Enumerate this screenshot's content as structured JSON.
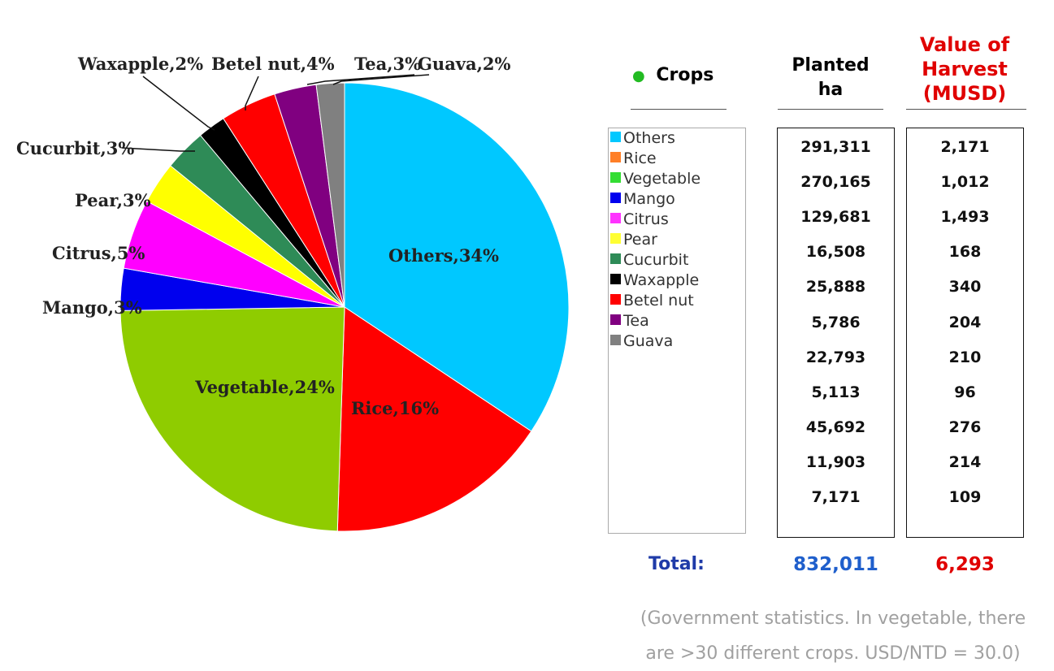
{
  "chart_data": {
    "type": "pie",
    "slices": [
      {
        "name": "Others",
        "label": "Others,34%",
        "percent": 34,
        "color": "#00c8ff"
      },
      {
        "name": "Rice",
        "label": "Rice,16%",
        "percent": 16,
        "color": "#ff0000"
      },
      {
        "name": "Vegetable",
        "label": "Vegetable,24%",
        "percent": 24,
        "color": "#8fcc00"
      },
      {
        "name": "Mango",
        "label": "Mango,3%",
        "percent": 3,
        "color": "#0000ee"
      },
      {
        "name": "Citrus",
        "label": "Citrus,5%",
        "percent": 5,
        "color": "#ff00ff"
      },
      {
        "name": "Pear",
        "label": "Pear,3%",
        "percent": 3,
        "color": "#ffff00"
      },
      {
        "name": "Cucurbit",
        "label": "Cucurbit,3%",
        "percent": 3,
        "color": "#2e8b57"
      },
      {
        "name": "Waxapple",
        "label": "Waxapple,2%",
        "percent": 2,
        "color": "#000000"
      },
      {
        "name": "Betel nut",
        "label": "Betel nut,4%",
        "percent": 4,
        "color": "#ff0000"
      },
      {
        "name": "Tea",
        "label": "Tea,3%",
        "percent": 3,
        "color": "#800080"
      },
      {
        "name": "Guava",
        "label": "Guava,2%",
        "percent": 2,
        "color": "#808080"
      }
    ]
  },
  "table": {
    "crops_header": "Crops",
    "planted_header": [
      "Planted",
      "ha"
    ],
    "value_header": [
      "Value of",
      "Harvest",
      "(MUSD)"
    ],
    "legend": [
      {
        "label": "Others",
        "color": "#00c8ff"
      },
      {
        "label": "Rice",
        "color": "#ff7f27"
      },
      {
        "label": "Vegetable",
        "color": "#33dd33"
      },
      {
        "label": "Mango",
        "color": "#0000ee"
      },
      {
        "label": "Citrus",
        "color": "#ff33ff"
      },
      {
        "label": "Pear",
        "color": "#ffff33"
      },
      {
        "label": "Cucurbit",
        "color": "#2e8b57"
      },
      {
        "label": "Waxapple",
        "color": "#000000"
      },
      {
        "label": "Betel nut",
        "color": "#ff0000"
      },
      {
        "label": "Tea",
        "color": "#800080"
      },
      {
        "label": "Guava",
        "color": "#808080"
      }
    ],
    "planted": [
      "291,311",
      "270,165",
      "129,681",
      "16,508",
      "25,888",
      "5,786",
      "22,793",
      "5,113",
      "45,692",
      "11,903",
      "7,171"
    ],
    "value": [
      "2,171",
      "1,012",
      "1,493",
      "168",
      "340",
      "204",
      "210",
      "96",
      "276",
      "214",
      "109"
    ],
    "total_label": "Total:",
    "total_planted": "832,011",
    "total_value": "6,293"
  },
  "note": [
    "(Government statistics. In vegetable, there",
    "are >30 different crops. USD/NTD = 30.0)"
  ],
  "colors": {
    "total_label": "#1f3ba8",
    "total_planted": "#1f5fcc",
    "total_value": "#e00000",
    "value_header": "#e00000",
    "bullet": "#22bb22"
  }
}
